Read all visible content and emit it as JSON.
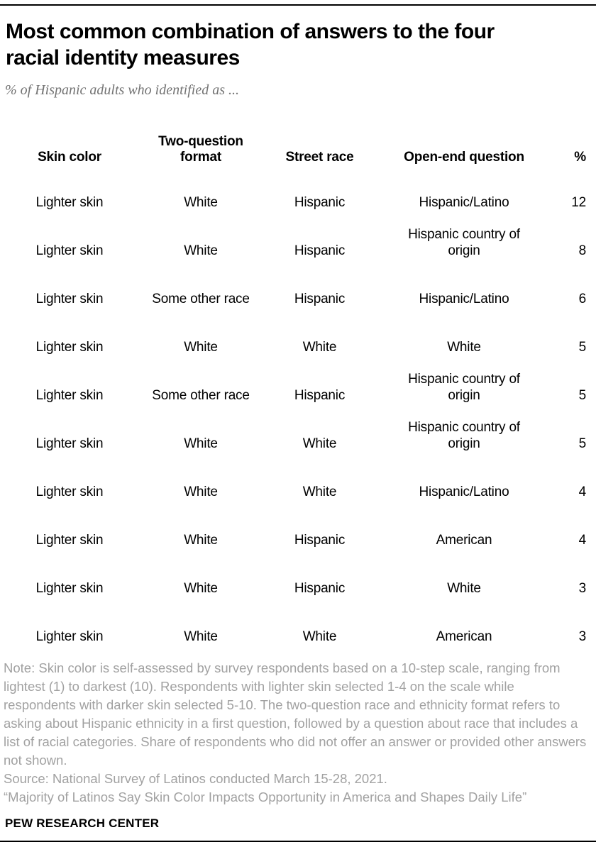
{
  "header": {
    "title": "Most common combination of answers to the four racial identity measures",
    "subtitle": "% of Hispanic adults who identified as ..."
  },
  "table": {
    "columns": [
      "Skin color",
      "Two-question format",
      "Street race",
      "Open-end question",
      "%"
    ],
    "rows": [
      [
        "Lighter skin",
        "White",
        "Hispanic",
        "Hispanic/Latino",
        "12"
      ],
      [
        "Lighter skin",
        "White",
        "Hispanic",
        "Hispanic country of origin",
        "8"
      ],
      [
        "Lighter skin",
        "Some other race",
        "Hispanic",
        "Hispanic/Latino",
        "6"
      ],
      [
        "Lighter skin",
        "White",
        "White",
        "White",
        "5"
      ],
      [
        "Lighter skin",
        "Some other race",
        "Hispanic",
        "Hispanic country of origin",
        "5"
      ],
      [
        "Lighter skin",
        "White",
        "White",
        "Hispanic country of origin",
        "5"
      ],
      [
        "Lighter skin",
        "White",
        "White",
        "Hispanic/Latino",
        "4"
      ],
      [
        "Lighter skin",
        "White",
        "Hispanic",
        "American",
        "4"
      ],
      [
        "Lighter skin",
        "White",
        "Hispanic",
        "White",
        "3"
      ],
      [
        "Lighter skin",
        "White",
        "White",
        "American",
        "3"
      ]
    ]
  },
  "footer": {
    "note": "Note: Skin color is self-assessed by survey respondents based on a 10-step scale, ranging from lightest (1) to darkest (10). Respondents with lighter skin selected 1-4 on the scale while respondents with darker skin selected 5-10.  The two-question race and ethnicity format refers to asking about Hispanic ethnicity in a first question, followed by a question about race that includes a list of racial categories. Share of respondents who did not offer an answer or provided other answers not shown.",
    "source": "Source: National Survey of Latinos conducted March 15-28, 2021.",
    "quote": "“Majority of Latinos Say Skin Color Impacts Opportunity in America and Shapes Daily Life”",
    "brand": "PEW RESEARCH CENTER"
  },
  "colors": {
    "text": "#000000",
    "subtitle_gray": "#737373",
    "note_gray": "#a1a1a1",
    "rule": "#000000"
  },
  "chart_data": {
    "type": "table",
    "title": "Most common combination of answers to the four racial identity measures",
    "subtitle": "% of Hispanic adults who identified as ...",
    "columns": [
      "Skin color",
      "Two-question format",
      "Street race",
      "Open-end question",
      "%"
    ],
    "rows": [
      [
        "Lighter skin",
        "White",
        "Hispanic",
        "Hispanic/Latino",
        12
      ],
      [
        "Lighter skin",
        "White",
        "Hispanic",
        "Hispanic country of origin",
        8
      ],
      [
        "Lighter skin",
        "Some other race",
        "Hispanic",
        "Hispanic/Latino",
        6
      ],
      [
        "Lighter skin",
        "White",
        "White",
        "White",
        5
      ],
      [
        "Lighter skin",
        "Some other race",
        "Hispanic",
        "Hispanic country of origin",
        5
      ],
      [
        "Lighter skin",
        "White",
        "White",
        "Hispanic country of origin",
        5
      ],
      [
        "Lighter skin",
        "White",
        "White",
        "Hispanic/Latino",
        4
      ],
      [
        "Lighter skin",
        "White",
        "Hispanic",
        "American",
        4
      ],
      [
        "Lighter skin",
        "White",
        "Hispanic",
        "White",
        3
      ],
      [
        "Lighter skin",
        "White",
        "White",
        "American",
        3
      ]
    ]
  }
}
